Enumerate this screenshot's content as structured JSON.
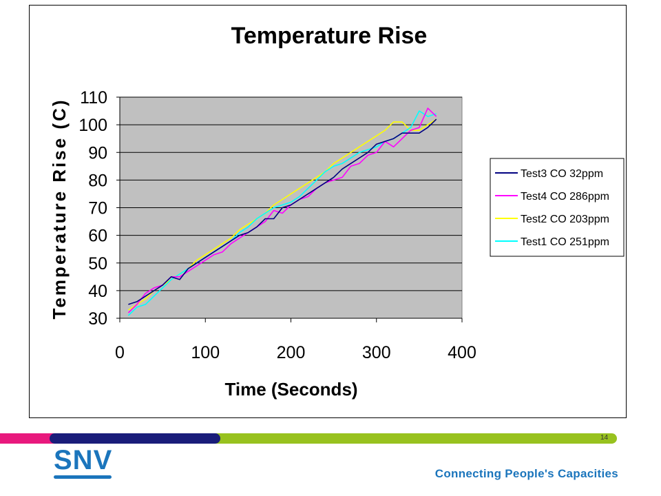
{
  "chart_data": {
    "type": "line",
    "title": "Temperature Rise",
    "xlabel": "Time (Seconds)",
    "ylabel": "Temperature Rise (C)",
    "xlim": [
      0,
      400
    ],
    "ylim": [
      30,
      110
    ],
    "xticks": [
      0,
      100,
      200,
      300,
      400
    ],
    "yticks": [
      30,
      40,
      50,
      60,
      70,
      80,
      90,
      100,
      110
    ],
    "grid": "horizontal",
    "plot_background": "#c0c0c0",
    "legend_position": "right",
    "series": [
      {
        "name": "Test3 CO 32ppm",
        "color": "#000080",
        "x": [
          10,
          20,
          30,
          40,
          50,
          60,
          70,
          80,
          90,
          100,
          110,
          120,
          130,
          140,
          150,
          160,
          170,
          180,
          190,
          200,
          210,
          220,
          230,
          240,
          250,
          260,
          270,
          280,
          290,
          300,
          310,
          320,
          330,
          340,
          350,
          360,
          370
        ],
        "values": [
          35,
          36,
          38,
          40,
          42,
          45,
          44,
          48,
          50,
          52,
          54,
          56,
          58,
          60,
          61,
          63,
          66,
          66,
          70,
          71,
          73,
          75,
          77,
          79,
          81,
          84,
          86,
          88,
          90,
          93,
          94,
          95,
          97,
          97,
          97,
          99,
          102
        ]
      },
      {
        "name": "Test4 CO 286ppm",
        "color": "#ff00ff",
        "x": [
          10,
          20,
          30,
          40,
          50,
          60,
          70,
          80,
          90,
          100,
          110,
          120,
          130,
          140,
          150,
          160,
          170,
          180,
          190,
          200,
          210,
          220,
          230,
          240,
          250,
          260,
          270,
          280,
          290,
          300,
          310,
          320,
          330,
          340,
          350,
          360,
          370
        ],
        "values": [
          32,
          35,
          39,
          41,
          42,
          45,
          45,
          47,
          49,
          51,
          53,
          54,
          57,
          59,
          61,
          63,
          65,
          69,
          68,
          71,
          73,
          74,
          77,
          79,
          80,
          81,
          85,
          86,
          89,
          90,
          94,
          92,
          95,
          98,
          99,
          106,
          103
        ]
      },
      {
        "name": "Test2 CO 203ppm",
        "color": "#ffff00",
        "x": [
          10,
          20,
          30,
          40,
          50,
          60,
          70,
          80,
          90,
          100,
          110,
          120,
          130,
          140,
          150,
          160,
          170,
          180,
          190,
          200,
          210,
          220,
          230,
          240,
          250,
          260,
          270,
          280,
          290,
          300,
          310,
          320,
          330,
          340,
          350,
          360,
          370
        ],
        "values": [
          33,
          35,
          37,
          40,
          42,
          44,
          46,
          48,
          51,
          53,
          55,
          57,
          59,
          62,
          64,
          66,
          68,
          71,
          73,
          75,
          77,
          79,
          81,
          83,
          86,
          88,
          90,
          92,
          94,
          96,
          98,
          101,
          101,
          98,
          98,
          100,
          102
        ]
      },
      {
        "name": "Test1 CO 251ppm",
        "color": "#00ffff",
        "x": [
          10,
          20,
          30,
          40,
          50,
          60,
          70,
          80,
          90,
          100,
          110,
          120,
          130,
          140,
          150,
          160,
          170,
          180,
          190,
          200,
          210,
          220,
          230,
          240,
          250,
          260,
          270,
          280,
          290,
          300,
          310,
          320,
          330,
          340,
          350,
          360,
          370
        ],
        "values": [
          31,
          34,
          35,
          38,
          41,
          44,
          46,
          48,
          50,
          52,
          54,
          56,
          58,
          61,
          63,
          66,
          68,
          70,
          71,
          72,
          74,
          77,
          80,
          83,
          85,
          86,
          88,
          90,
          91,
          92,
          94,
          95,
          97,
          99,
          105,
          103,
          104
        ]
      }
    ]
  },
  "slide": {
    "page_number": "14",
    "logo_text": "SNV",
    "tagline": "Connecting People's Capacities"
  },
  "colors": {
    "pink": "#e8197d",
    "navy": "#1a1d7a",
    "green": "#98c21f",
    "brand_blue": "#1b75bc"
  }
}
